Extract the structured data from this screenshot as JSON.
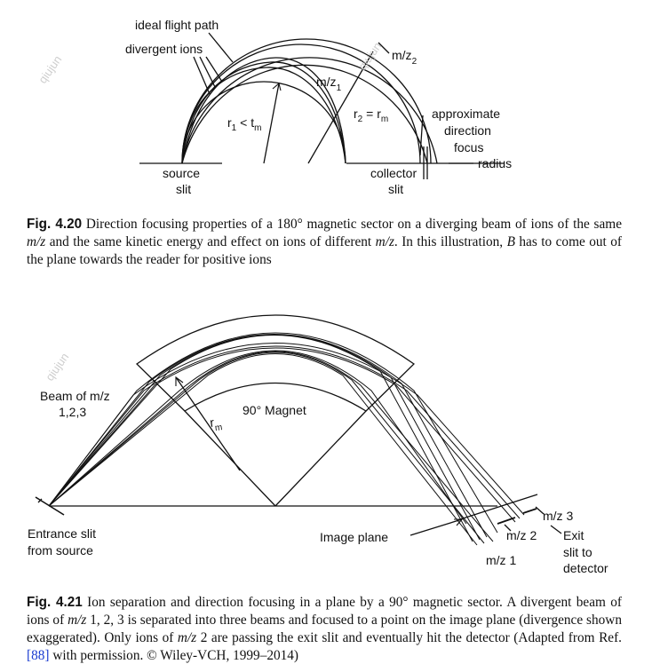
{
  "figure_1": {
    "labels": {
      "ideal_flight_path": "ideal flight path",
      "divergent_ions": "divergent ions",
      "m_over_z": "m/z",
      "r1_a": "r",
      "r1_b": " < t",
      "r2_a": "r",
      "r2_b": " = r",
      "sub_1": "1",
      "sub_2": "2",
      "sub_m": "m",
      "approximate": "approximate",
      "direction": "direction",
      "focus": "focus",
      "radius": "radius",
      "source": "source",
      "collector": "collector",
      "slit": "slit"
    },
    "caption": {
      "number": "Fig. 4.20",
      "p1": "Direction focusing properties of a 180° magnetic sector on a diverging beam of ions of the same ",
      "mz1": "m/z",
      "p2": " and the same kinetic energy and effect on ions of different ",
      "mz2": "m/z",
      "p3": ". In this illustration, ",
      "B": "B",
      "p4": " has to come out of the plane towards the reader for positive ions"
    }
  },
  "figure_2": {
    "labels": {
      "beam_of": "Beam of m/z",
      "beam_values": "1,2,3",
      "r": "r",
      "sub_m": "m",
      "magnet": "90° Magnet",
      "entrance_slit": "Entrance slit",
      "from_source": "from source",
      "image_plane": "Image plane",
      "mz3": "m/z 3",
      "mz2": "m/z 2",
      "mz1": "m/z 1",
      "exit": "Exit",
      "slit_to": "slit to",
      "detector": "detector"
    },
    "caption": {
      "number": "Fig. 4.21",
      "p1": "Ion separation and direction focusing in a plane by a 90° magnetic sector. A divergent beam of ions of ",
      "mz1": "m/z",
      "p2": " 1, 2, 3 is separated into three beams and focused to a point on the image plane (divergence shown exaggerated). Only ions of ",
      "mz2": "m/z",
      "p3": " 2 are passing the exit slit and eventually hit the detector (Adapted from Ref. ",
      "ref": "[88]",
      "p4": " with permission. © Wiley-VCH, 1999–2014)"
    }
  },
  "watermark": "qiujun"
}
